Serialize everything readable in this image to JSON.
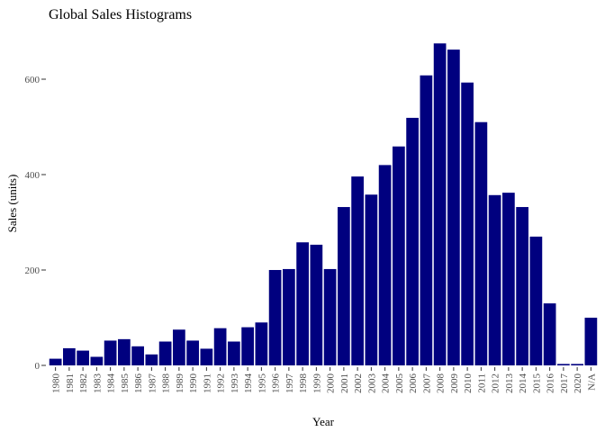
{
  "chart_data": {
    "type": "bar",
    "title": "Global Sales Histograms",
    "xlabel": "Year",
    "ylabel": "Sales (units)",
    "ylim": [
      0,
      700
    ],
    "yticks": [
      0,
      200,
      400,
      600
    ],
    "bar_color": "#00007f",
    "grid": false,
    "categories": [
      "1980",
      "1981",
      "1982",
      "1983",
      "1984",
      "1985",
      "1986",
      "1987",
      "1988",
      "1989",
      "1990",
      "1991",
      "1992",
      "1993",
      "1994",
      "1995",
      "1996",
      "1997",
      "1998",
      "1999",
      "2000",
      "2001",
      "2002",
      "2003",
      "2004",
      "2005",
      "2006",
      "2007",
      "2008",
      "2009",
      "2010",
      "2011",
      "2012",
      "2013",
      "2014",
      "2015",
      "2016",
      "2017",
      "2020",
      "N/A"
    ],
    "values": [
      14,
      36,
      31,
      18,
      52,
      55,
      40,
      23,
      50,
      75,
      52,
      35,
      78,
      50,
      80,
      90,
      200,
      202,
      258,
      253,
      202,
      332,
      396,
      358,
      420,
      459,
      519,
      608,
      675,
      662,
      593,
      510,
      357,
      362,
      332,
      270,
      130,
      3,
      3,
      100
    ]
  }
}
